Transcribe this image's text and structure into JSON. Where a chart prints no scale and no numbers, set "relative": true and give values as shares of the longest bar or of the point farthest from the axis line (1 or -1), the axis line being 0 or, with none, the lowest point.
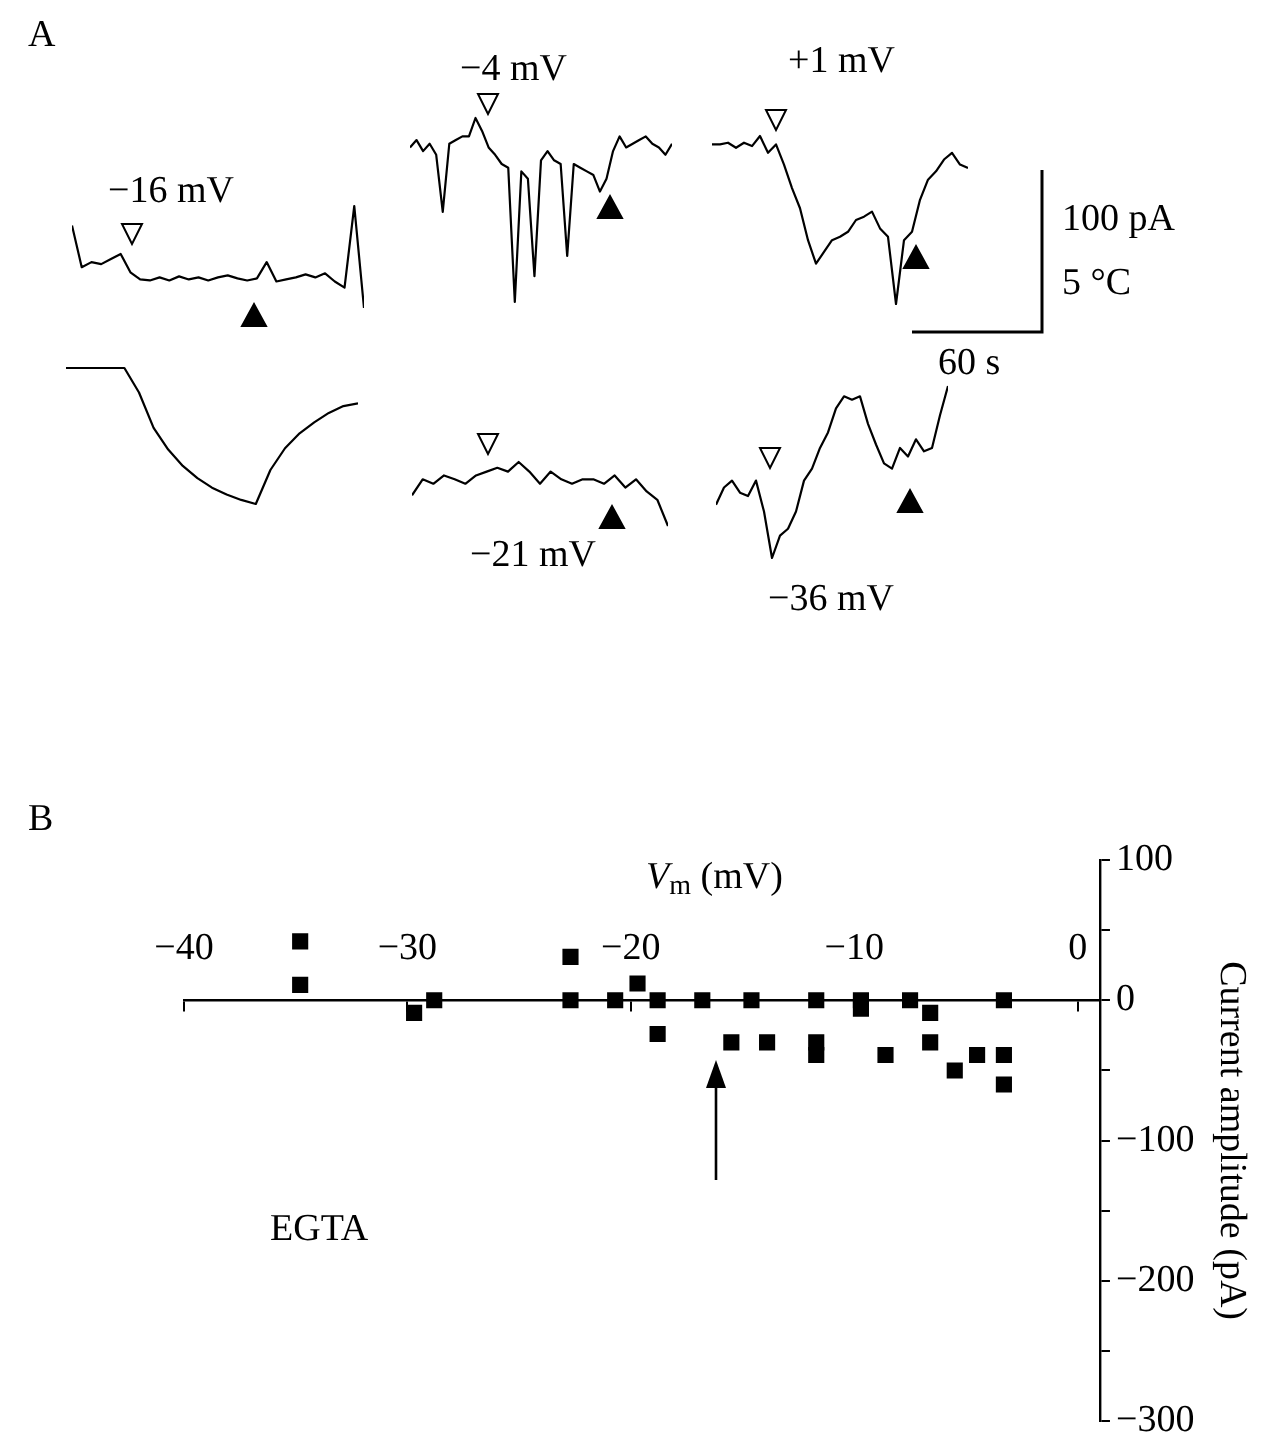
{
  "chart_data": [
    {
      "type": "line",
      "relative": true,
      "title": "−16 mV",
      "annotations": [
        "A"
      ],
      "categories": [
        null,
        null,
        null,
        null,
        null,
        null,
        null,
        null,
        null,
        null,
        null,
        null,
        null,
        null,
        null,
        null,
        null,
        null,
        null,
        null,
        null,
        null,
        null,
        null,
        null,
        null,
        null,
        null,
        null,
        null,
        null
      ],
      "values": [
        0.81,
        0.4,
        0.45,
        0.43,
        0.48,
        0.53,
        0.35,
        0.28,
        0.27,
        0.3,
        0.27,
        0.31,
        0.28,
        0.3,
        0.27,
        0.3,
        0.32,
        0.29,
        0.27,
        0.29,
        0.45,
        0.26,
        0.28,
        0.3,
        0.33,
        0.3,
        0.34,
        0.26,
        0.2,
        1,
        0
      ],
      "color": "#000000",
      "marker": "none",
      "legend": false
    },
    {
      "type": "line",
      "relative": true,
      "categories": [
        null,
        null,
        null,
        null,
        null,
        null,
        null,
        null,
        null,
        null,
        null,
        null,
        null,
        null,
        null,
        null,
        null,
        null,
        null,
        null,
        null
      ],
      "values": [
        1,
        1,
        1,
        1,
        1,
        0.82,
        0.56,
        0.4,
        0.28,
        0.19,
        0.12,
        0.07,
        0.03,
        0,
        0.25,
        0.41,
        0.52,
        0.6,
        0.67,
        0.72,
        0.74
      ],
      "color": "#000000",
      "marker": "none",
      "legend": false
    },
    {
      "type": "line",
      "relative": true,
      "title": "−4 mV",
      "categories": [
        null,
        null,
        null,
        null,
        null,
        null,
        null,
        null,
        null,
        null,
        null,
        null,
        null,
        null,
        null,
        null,
        null,
        null,
        null,
        null,
        null,
        null,
        null,
        null,
        null,
        null,
        null,
        null,
        null,
        null,
        null,
        null,
        null,
        null,
        null,
        null,
        null,
        null,
        null,
        null,
        null
      ],
      "values": [
        0.84,
        0.88,
        0.82,
        0.86,
        0.8,
        0.49,
        0.86,
        0.88,
        0.9,
        0.9,
        1,
        0.93,
        0.84,
        0.8,
        0.75,
        0.73,
        0,
        0.71,
        0.67,
        0.14,
        0.77,
        0.82,
        0.77,
        0.75,
        0.25,
        0.75,
        0.73,
        0.71,
        0.69,
        0.6,
        0.67,
        0.82,
        0.9,
        0.84,
        0.86,
        0.88,
        0.9,
        0.86,
        0.84,
        0.8,
        0.86
      ],
      "color": "#000000",
      "marker": "none",
      "legend": false
    },
    {
      "type": "line",
      "relative": true,
      "title": "+1 mV",
      "annotations": [
        "100 pA",
        "5 °C",
        "60 s"
      ],
      "categories": [
        null,
        null,
        null,
        null,
        null,
        null,
        null,
        null,
        null,
        null,
        null,
        null,
        null,
        null,
        null,
        null,
        null,
        null,
        null,
        null,
        null,
        null,
        null,
        null,
        null,
        null,
        null,
        null,
        null,
        null,
        null,
        null,
        null
      ],
      "values": [
        0.95,
        0.95,
        0.96,
        0.93,
        0.96,
        0.94,
        1,
        0.9,
        0.95,
        0.83,
        0.69,
        0.57,
        0.38,
        0.24,
        0.31,
        0.38,
        0.4,
        0.43,
        0.5,
        0.52,
        0.55,
        0.45,
        0.4,
        0,
        0.38,
        0.43,
        0.62,
        0.74,
        0.79,
        0.86,
        0.9,
        0.83,
        0.81
      ],
      "color": "#000000",
      "marker": "none",
      "legend": false
    },
    {
      "type": "line",
      "relative": true,
      "title": "−21 mV",
      "categories": [
        null,
        null,
        null,
        null,
        null,
        null,
        null,
        null,
        null,
        null,
        null,
        null,
        null,
        null,
        null,
        null,
        null,
        null,
        null,
        null,
        null,
        null,
        null,
        null,
        null
      ],
      "values": [
        0.48,
        0.73,
        0.66,
        0.79,
        0.73,
        0.66,
        0.79,
        0.85,
        0.91,
        0.85,
        1,
        0.85,
        0.66,
        0.85,
        0.73,
        0.66,
        0.73,
        0.73,
        0.66,
        0.79,
        0.6,
        0.73,
        0.54,
        0.41,
        0
      ],
      "color": "#000000",
      "marker": "none",
      "legend": false
    },
    {
      "type": "line",
      "relative": true,
      "title": "−36 mV",
      "categories": [
        null,
        null,
        null,
        null,
        null,
        null,
        null,
        null,
        null,
        null,
        null,
        null,
        null,
        null,
        null,
        null,
        null,
        null,
        null,
        null,
        null,
        null,
        null,
        null,
        null,
        null,
        null,
        null,
        null,
        null
      ],
      "values": [
        0.31,
        0.41,
        0.45,
        0.38,
        0.36,
        0.45,
        0.27,
        0,
        0.13,
        0.17,
        0.27,
        0.45,
        0.52,
        0.64,
        0.73,
        0.87,
        0.94,
        0.92,
        0.94,
        0.78,
        0.66,
        0.55,
        0.52,
        0.64,
        0.59,
        0.69,
        0.62,
        0.64,
        0.83,
        1
      ],
      "color": "#000000",
      "marker": "none",
      "legend": false
    },
    {
      "type": "scatter",
      "xlabel": "V$_{m}$ (mV)",
      "ylabel": "Current amplitude (pA)",
      "annotations": [
        "B",
        "EGTA"
      ],
      "x": [
        -34.8,
        -34.8,
        -29.7,
        -28.8,
        -22.7,
        -22.7,
        -20.7,
        -19.7,
        -18.8,
        -18.8,
        -16.8,
        -14.6,
        -15.5,
        -13.9,
        -11.7,
        -11.7,
        -11.7,
        -9.7,
        -9.7,
        -8.6,
        -7.5,
        -6.6,
        -6.6,
        -5.5,
        -4.5,
        -3.3,
        -3.3,
        -3.3
      ],
      "values": [
        42,
        11,
        -9,
        0,
        31,
        0,
        0,
        12,
        0,
        -24,
        0,
        0,
        -30,
        -30,
        0,
        -30,
        -39,
        0,
        -6,
        -39,
        0,
        -9,
        -30,
        -50,
        -39,
        -39,
        0,
        -60
      ],
      "color": "#000000",
      "marker": "square",
      "grid": false,
      "legend": false,
      "xlim": [
        -40,
        1
      ],
      "xticks": [
        -40,
        -30,
        -20,
        -10,
        0
      ],
      "ylim": [
        -300,
        100
      ],
      "yticks": [
        100,
        {
          "value": 50,
          "label": null
        },
        0,
        {
          "value": -50,
          "label": null
        },
        -100,
        {
          "value": -150,
          "label": null
        },
        -200,
        {
          "value": -250,
          "label": null
        },
        -300
      ]
    }
  ]
}
